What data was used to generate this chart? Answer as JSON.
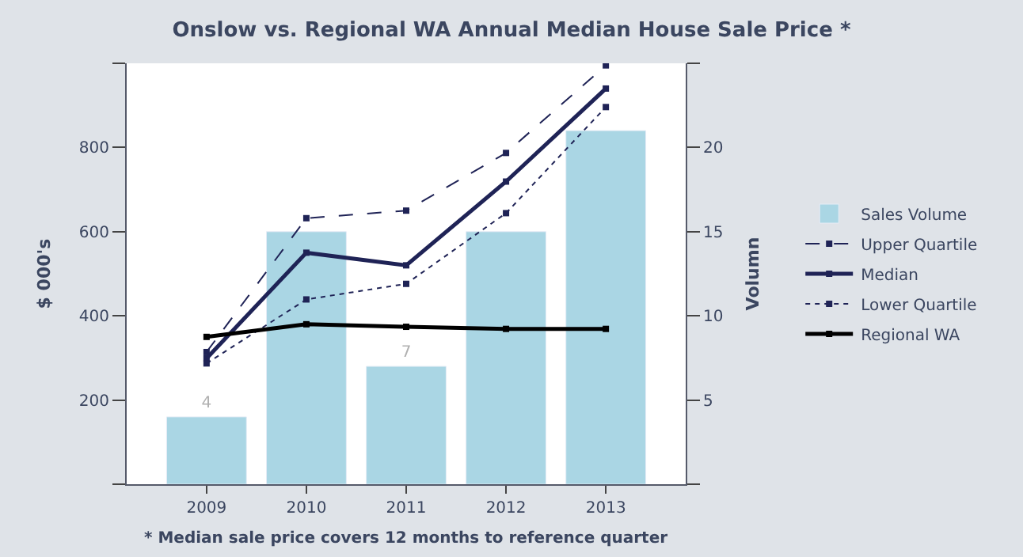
{
  "chart_data": {
    "type": "line",
    "title": "Onslow vs. Regional WA Annual Median House Sale Price *",
    "ylabel": "$ 000's",
    "y2label": "Volumn",
    "categories": [
      "2009",
      "2010",
      "2011",
      "2012",
      "2013"
    ],
    "series": [
      {
        "name": "Sales Volume",
        "type": "bar",
        "axis": "y2",
        "color": "#aad6e4",
        "values": [
          4,
          15,
          7,
          15,
          21
        ],
        "value_labels": [
          "4",
          null,
          "7",
          null,
          null
        ]
      },
      {
        "name": "Upper Quartile",
        "color": "#1f2356",
        "line_style": "dashed",
        "values": [
          314,
          632,
          650,
          787,
          995
        ]
      },
      {
        "name": "Median",
        "color": "#1f2356",
        "line_style": "solid",
        "values": [
          299,
          550,
          520,
          719,
          940
        ]
      },
      {
        "name": "Lower Quartile",
        "color": "#1f2356",
        "line_style": "dotted",
        "values": [
          287,
          439,
          476,
          644,
          896
        ]
      },
      {
        "name": "Regional WA",
        "color": "#000000",
        "line_style": "solid",
        "values": [
          350,
          380,
          374,
          369,
          369
        ]
      }
    ],
    "ylim": [
      0,
      1000
    ],
    "yticks": [
      {
        "value": 0,
        "label": null
      },
      200,
      400,
      600,
      800,
      {
        "value": 1000,
        "label": null
      }
    ],
    "y2lim": [
      0,
      25
    ],
    "y2ticks": [
      {
        "value": 0,
        "label": null
      },
      5,
      10,
      15,
      20,
      {
        "value": 25,
        "label": null
      }
    ],
    "marker": "square",
    "legend": "right",
    "annotations": [
      "* Median sale price covers 12 months to reference quarter"
    ]
  }
}
